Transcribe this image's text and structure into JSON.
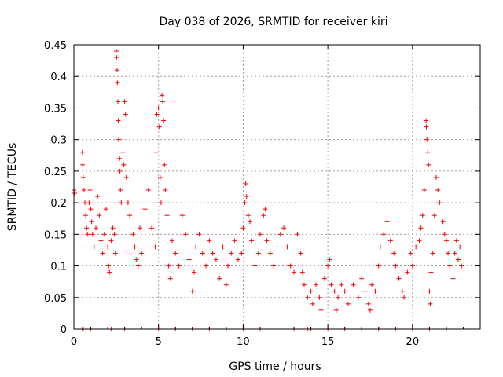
{
  "chart_data": {
    "type": "scatter",
    "title": "Day 038 of 2026, SRMTID for receiver kiri",
    "xlabel": "GPS time / hours",
    "ylabel": "SRMTID / TECUs",
    "xlim": [
      0,
      24
    ],
    "ylim": [
      0,
      0.45
    ],
    "xticks": [
      0,
      5,
      10,
      15,
      20
    ],
    "xtick_labels": [
      "0",
      "5",
      "10",
      "15",
      "20"
    ],
    "yticks": [
      0,
      0.05,
      0.1,
      0.15,
      0.2,
      0.25,
      0.3,
      0.35,
      0.4,
      0.45
    ],
    "ytick_labels": [
      "0",
      "0.05",
      "0.1",
      "0.15",
      "0.2",
      "0.25",
      "0.3",
      "0.35",
      "0.4",
      "0.45"
    ],
    "grid": true,
    "marker": "+",
    "marker_color": "#ff0000",
    "series": [
      {
        "name": "SRMTID",
        "points": [
          [
            0.0,
            0.22
          ],
          [
            0.05,
            0.215
          ],
          [
            0.5,
            0.28
          ],
          [
            0.52,
            0.26
          ],
          [
            0.55,
            0.24
          ],
          [
            0.6,
            0.22
          ],
          [
            0.65,
            0.2
          ],
          [
            0.7,
            0.18
          ],
          [
            0.75,
            0.16
          ],
          [
            0.8,
            0.15
          ],
          [
            0.9,
            0.2
          ],
          [
            0.95,
            0.22
          ],
          [
            1.0,
            0.19
          ],
          [
            1.05,
            0.17
          ],
          [
            1.1,
            0.15
          ],
          [
            1.2,
            0.13
          ],
          [
            1.3,
            0.16
          ],
          [
            1.4,
            0.21
          ],
          [
            1.5,
            0.18
          ],
          [
            1.6,
            0.14
          ],
          [
            1.7,
            0.12
          ],
          [
            1.8,
            0.15
          ],
          [
            1.9,
            0.19
          ],
          [
            2.0,
            0.13
          ],
          [
            2.05,
            0.1
          ],
          [
            2.1,
            0.09
          ],
          [
            2.2,
            0.14
          ],
          [
            2.3,
            0.16
          ],
          [
            2.4,
            0.15
          ],
          [
            2.45,
            0.12
          ],
          [
            2.5,
            0.44
          ],
          [
            2.52,
            0.43
          ],
          [
            2.55,
            0.41
          ],
          [
            2.57,
            0.39
          ],
          [
            2.6,
            0.36
          ],
          [
            2.62,
            0.33
          ],
          [
            2.65,
            0.3
          ],
          [
            2.7,
            0.27
          ],
          [
            2.72,
            0.25
          ],
          [
            2.75,
            0.22
          ],
          [
            2.8,
            0.2
          ],
          [
            2.9,
            0.28
          ],
          [
            2.95,
            0.26
          ],
          [
            3.0,
            0.36
          ],
          [
            3.05,
            0.34
          ],
          [
            3.1,
            0.24
          ],
          [
            3.2,
            0.2
          ],
          [
            3.3,
            0.18
          ],
          [
            3.5,
            0.15
          ],
          [
            3.6,
            0.13
          ],
          [
            3.7,
            0.11
          ],
          [
            3.8,
            0.1
          ],
          [
            3.9,
            0.16
          ],
          [
            4.0,
            0.12
          ],
          [
            4.2,
            0.19
          ],
          [
            4.4,
            0.22
          ],
          [
            4.6,
            0.16
          ],
          [
            4.8,
            0.13
          ],
          [
            4.85,
            0.28
          ],
          [
            4.9,
            0.34
          ],
          [
            5.0,
            0.35
          ],
          [
            5.05,
            0.32
          ],
          [
            5.1,
            0.24
          ],
          [
            5.15,
            0.2
          ],
          [
            5.2,
            0.37
          ],
          [
            5.25,
            0.36
          ],
          [
            5.3,
            0.33
          ],
          [
            5.35,
            0.26
          ],
          [
            5.4,
            0.22
          ],
          [
            5.5,
            0.18
          ],
          [
            5.6,
            0.1
          ],
          [
            5.7,
            0.08
          ],
          [
            5.8,
            0.14
          ],
          [
            6.0,
            0.12
          ],
          [
            6.2,
            0.1
          ],
          [
            6.4,
            0.18
          ],
          [
            6.6,
            0.15
          ],
          [
            6.8,
            0.11
          ],
          [
            7.0,
            0.06
          ],
          [
            7.1,
            0.09
          ],
          [
            7.2,
            0.13
          ],
          [
            7.4,
            0.15
          ],
          [
            7.6,
            0.12
          ],
          [
            7.8,
            0.1
          ],
          [
            8.0,
            0.14
          ],
          [
            8.2,
            0.12
          ],
          [
            8.4,
            0.11
          ],
          [
            8.6,
            0.08
          ],
          [
            8.8,
            0.13
          ],
          [
            9.0,
            0.07
          ],
          [
            9.1,
            0.1
          ],
          [
            9.3,
            0.12
          ],
          [
            9.5,
            0.14
          ],
          [
            9.7,
            0.11
          ],
          [
            9.9,
            0.12
          ],
          [
            10.0,
            0.16
          ],
          [
            10.1,
            0.2
          ],
          [
            10.15,
            0.23
          ],
          [
            10.2,
            0.21
          ],
          [
            10.3,
            0.18
          ],
          [
            10.4,
            0.17
          ],
          [
            10.5,
            0.14
          ],
          [
            10.7,
            0.1
          ],
          [
            10.9,
            0.12
          ],
          [
            11.0,
            0.15
          ],
          [
            11.2,
            0.18
          ],
          [
            11.3,
            0.19
          ],
          [
            11.4,
            0.14
          ],
          [
            11.6,
            0.12
          ],
          [
            11.8,
            0.1
          ],
          [
            12.0,
            0.13
          ],
          [
            12.2,
            0.15
          ],
          [
            12.4,
            0.16
          ],
          [
            12.6,
            0.13
          ],
          [
            12.8,
            0.1
          ],
          [
            13.0,
            0.09
          ],
          [
            13.2,
            0.15
          ],
          [
            13.4,
            0.12
          ],
          [
            13.5,
            0.09
          ],
          [
            13.6,
            0.07
          ],
          [
            13.8,
            0.05
          ],
          [
            14.0,
            0.06
          ],
          [
            14.1,
            0.04
          ],
          [
            14.3,
            0.07
          ],
          [
            14.5,
            0.05
          ],
          [
            14.6,
            0.03
          ],
          [
            14.8,
            0.08
          ],
          [
            15.0,
            0.1
          ],
          [
            15.1,
            0.11
          ],
          [
            15.2,
            0.07
          ],
          [
            15.4,
            0.06
          ],
          [
            15.5,
            0.03
          ],
          [
            15.6,
            0.05
          ],
          [
            15.8,
            0.07
          ],
          [
            16.0,
            0.06
          ],
          [
            16.2,
            0.04
          ],
          [
            16.5,
            0.07
          ],
          [
            16.8,
            0.05
          ],
          [
            17.0,
            0.08
          ],
          [
            17.2,
            0.06
          ],
          [
            17.4,
            0.04
          ],
          [
            17.5,
            0.03
          ],
          [
            17.6,
            0.07
          ],
          [
            17.8,
            0.06
          ],
          [
            18.0,
            0.1
          ],
          [
            18.1,
            0.13
          ],
          [
            18.3,
            0.15
          ],
          [
            18.5,
            0.17
          ],
          [
            18.7,
            0.14
          ],
          [
            18.9,
            0.12
          ],
          [
            19.0,
            0.1
          ],
          [
            19.2,
            0.08
          ],
          [
            19.4,
            0.06
          ],
          [
            19.5,
            0.05
          ],
          [
            19.7,
            0.09
          ],
          [
            19.9,
            0.12
          ],
          [
            20.0,
            0.1
          ],
          [
            20.2,
            0.13
          ],
          [
            20.4,
            0.14
          ],
          [
            20.5,
            0.16
          ],
          [
            20.6,
            0.18
          ],
          [
            20.7,
            0.22
          ],
          [
            20.8,
            0.33
          ],
          [
            20.82,
            0.32
          ],
          [
            20.85,
            0.3
          ],
          [
            20.9,
            0.28
          ],
          [
            20.95,
            0.26
          ],
          [
            21.0,
            0.06
          ],
          [
            21.05,
            0.04
          ],
          [
            21.1,
            0.09
          ],
          [
            21.2,
            0.12
          ],
          [
            21.3,
            0.18
          ],
          [
            21.4,
            0.24
          ],
          [
            21.5,
            0.22
          ],
          [
            21.6,
            0.2
          ],
          [
            21.8,
            0.17
          ],
          [
            21.9,
            0.15
          ],
          [
            22.0,
            0.14
          ],
          [
            22.1,
            0.12
          ],
          [
            22.2,
            0.1
          ],
          [
            22.4,
            0.08
          ],
          [
            22.5,
            0.12
          ],
          [
            22.6,
            0.14
          ],
          [
            22.7,
            0.11
          ],
          [
            22.8,
            0.13
          ],
          [
            22.9,
            0.1
          ],
          [
            0.5,
            0.0
          ],
          [
            0.55,
            0.0
          ],
          [
            1.0,
            0.0
          ],
          [
            2.2,
            0.0
          ],
          [
            3.0,
            0.0
          ],
          [
            4.2,
            0.0
          ],
          [
            5.0,
            0.0
          ],
          [
            6.0,
            0.0
          ],
          [
            7.0,
            0.0
          ],
          [
            8.0,
            0.0
          ],
          [
            9.0,
            0.0
          ],
          [
            10.0,
            0.0
          ],
          [
            11.0,
            0.0
          ],
          [
            12.0,
            0.0
          ],
          [
            13.0,
            0.0
          ],
          [
            13.8,
            0.0
          ],
          [
            14.0,
            0.0
          ],
          [
            15.0,
            0.0
          ],
          [
            16.0,
            0.0
          ],
          [
            17.0,
            0.0
          ],
          [
            18.0,
            0.0
          ],
          [
            19.0,
            0.0
          ],
          [
            20.0,
            0.0
          ],
          [
            21.0,
            0.0
          ],
          [
            22.0,
            0.0
          ]
        ]
      }
    ]
  }
}
